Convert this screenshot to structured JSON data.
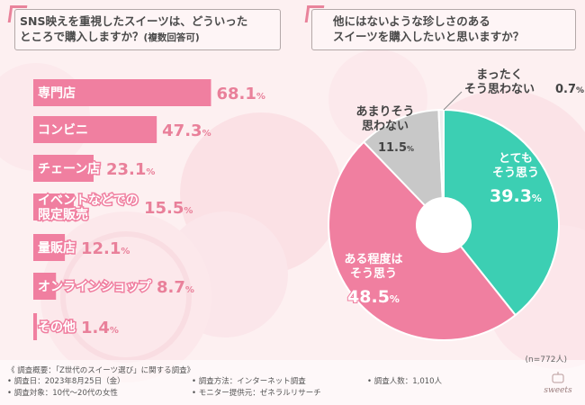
{
  "colors": {
    "pink": "#f07fa0",
    "pink_bg": "#fde4e8",
    "teal": "#3ccfb3",
    "gray": "#c8c8c8",
    "text_pink": "#e9809a"
  },
  "left_question": {
    "line1": "SNS映えを重視したスイーツは、どういった",
    "line2": "ところで購入しますか？",
    "note": "(複数回答可)"
  },
  "right_question": {
    "line1": "他にはないような珍しさのある",
    "line2": "スイーツを購入したいと思いますか？"
  },
  "n_note": "(n=772人)",
  "footer": {
    "title": "《 調査概要：「Z世代のスイーツ選び」に関する調査》",
    "items": [
      "• 調査日：2023年8月25日（金）",
      "• 調査方法：インターネット調査",
      "• 調査人数：1,010人",
      "• 調査対象：10代～20代の女性",
      "• モニター提供元：ゼネラルリサーチ"
    ]
  },
  "logo_text": "sweets",
  "chart_data": [
    {
      "type": "bar",
      "orientation": "horizontal",
      "title": "SNS映えを重視したスイーツは、どういったところで購入しますか？(複数回答可)",
      "categories": [
        "専門店",
        "コンビニ",
        "チェーン店",
        "イベントなどでの限定販売",
        "量販店",
        "オンラインショップ",
        "その他"
      ],
      "label_lines": [
        [
          "専門店"
        ],
        [
          "コンビニ"
        ],
        [
          "チェーン店"
        ],
        [
          "イベントなどでの",
          "限定販売"
        ],
        [
          "量販店"
        ],
        [
          "オンラインショップ"
        ],
        [
          "その他"
        ]
      ],
      "values": [
        68.1,
        47.3,
        23.1,
        15.5,
        12.1,
        8.7,
        1.4
      ],
      "value_labels": [
        "68.1",
        "47.3",
        "23.1",
        "15.5",
        "12.1",
        "8.7",
        "1.4"
      ],
      "unit": "%",
      "xlim": [
        0,
        100
      ]
    },
    {
      "type": "pie",
      "donut": true,
      "title": "他にはないような珍しさのあるスイーツを購入したいと思いますか？",
      "slices": [
        {
          "name": "とてもそう思う",
          "lines": [
            "とても",
            "そう思う"
          ],
          "value": 39.3,
          "label": "39.3",
          "color": "#3ccfb3"
        },
        {
          "name": "ある程度はそう思う",
          "lines": [
            "ある程度は",
            "そう思う"
          ],
          "value": 48.5,
          "label": "48.5",
          "color": "#f07fa0"
        },
        {
          "name": "あまりそう思わない",
          "lines": [
            "あまりそう",
            "思わない"
          ],
          "value": 11.5,
          "label": "11.5",
          "color": "#c8c8c8"
        },
        {
          "name": "まったくそう思わない",
          "lines": [
            "まったく",
            "そう思わない"
          ],
          "value": 0.7,
          "label": "0.7",
          "color": "#eeeeee"
        }
      ],
      "unit": "%"
    }
  ]
}
